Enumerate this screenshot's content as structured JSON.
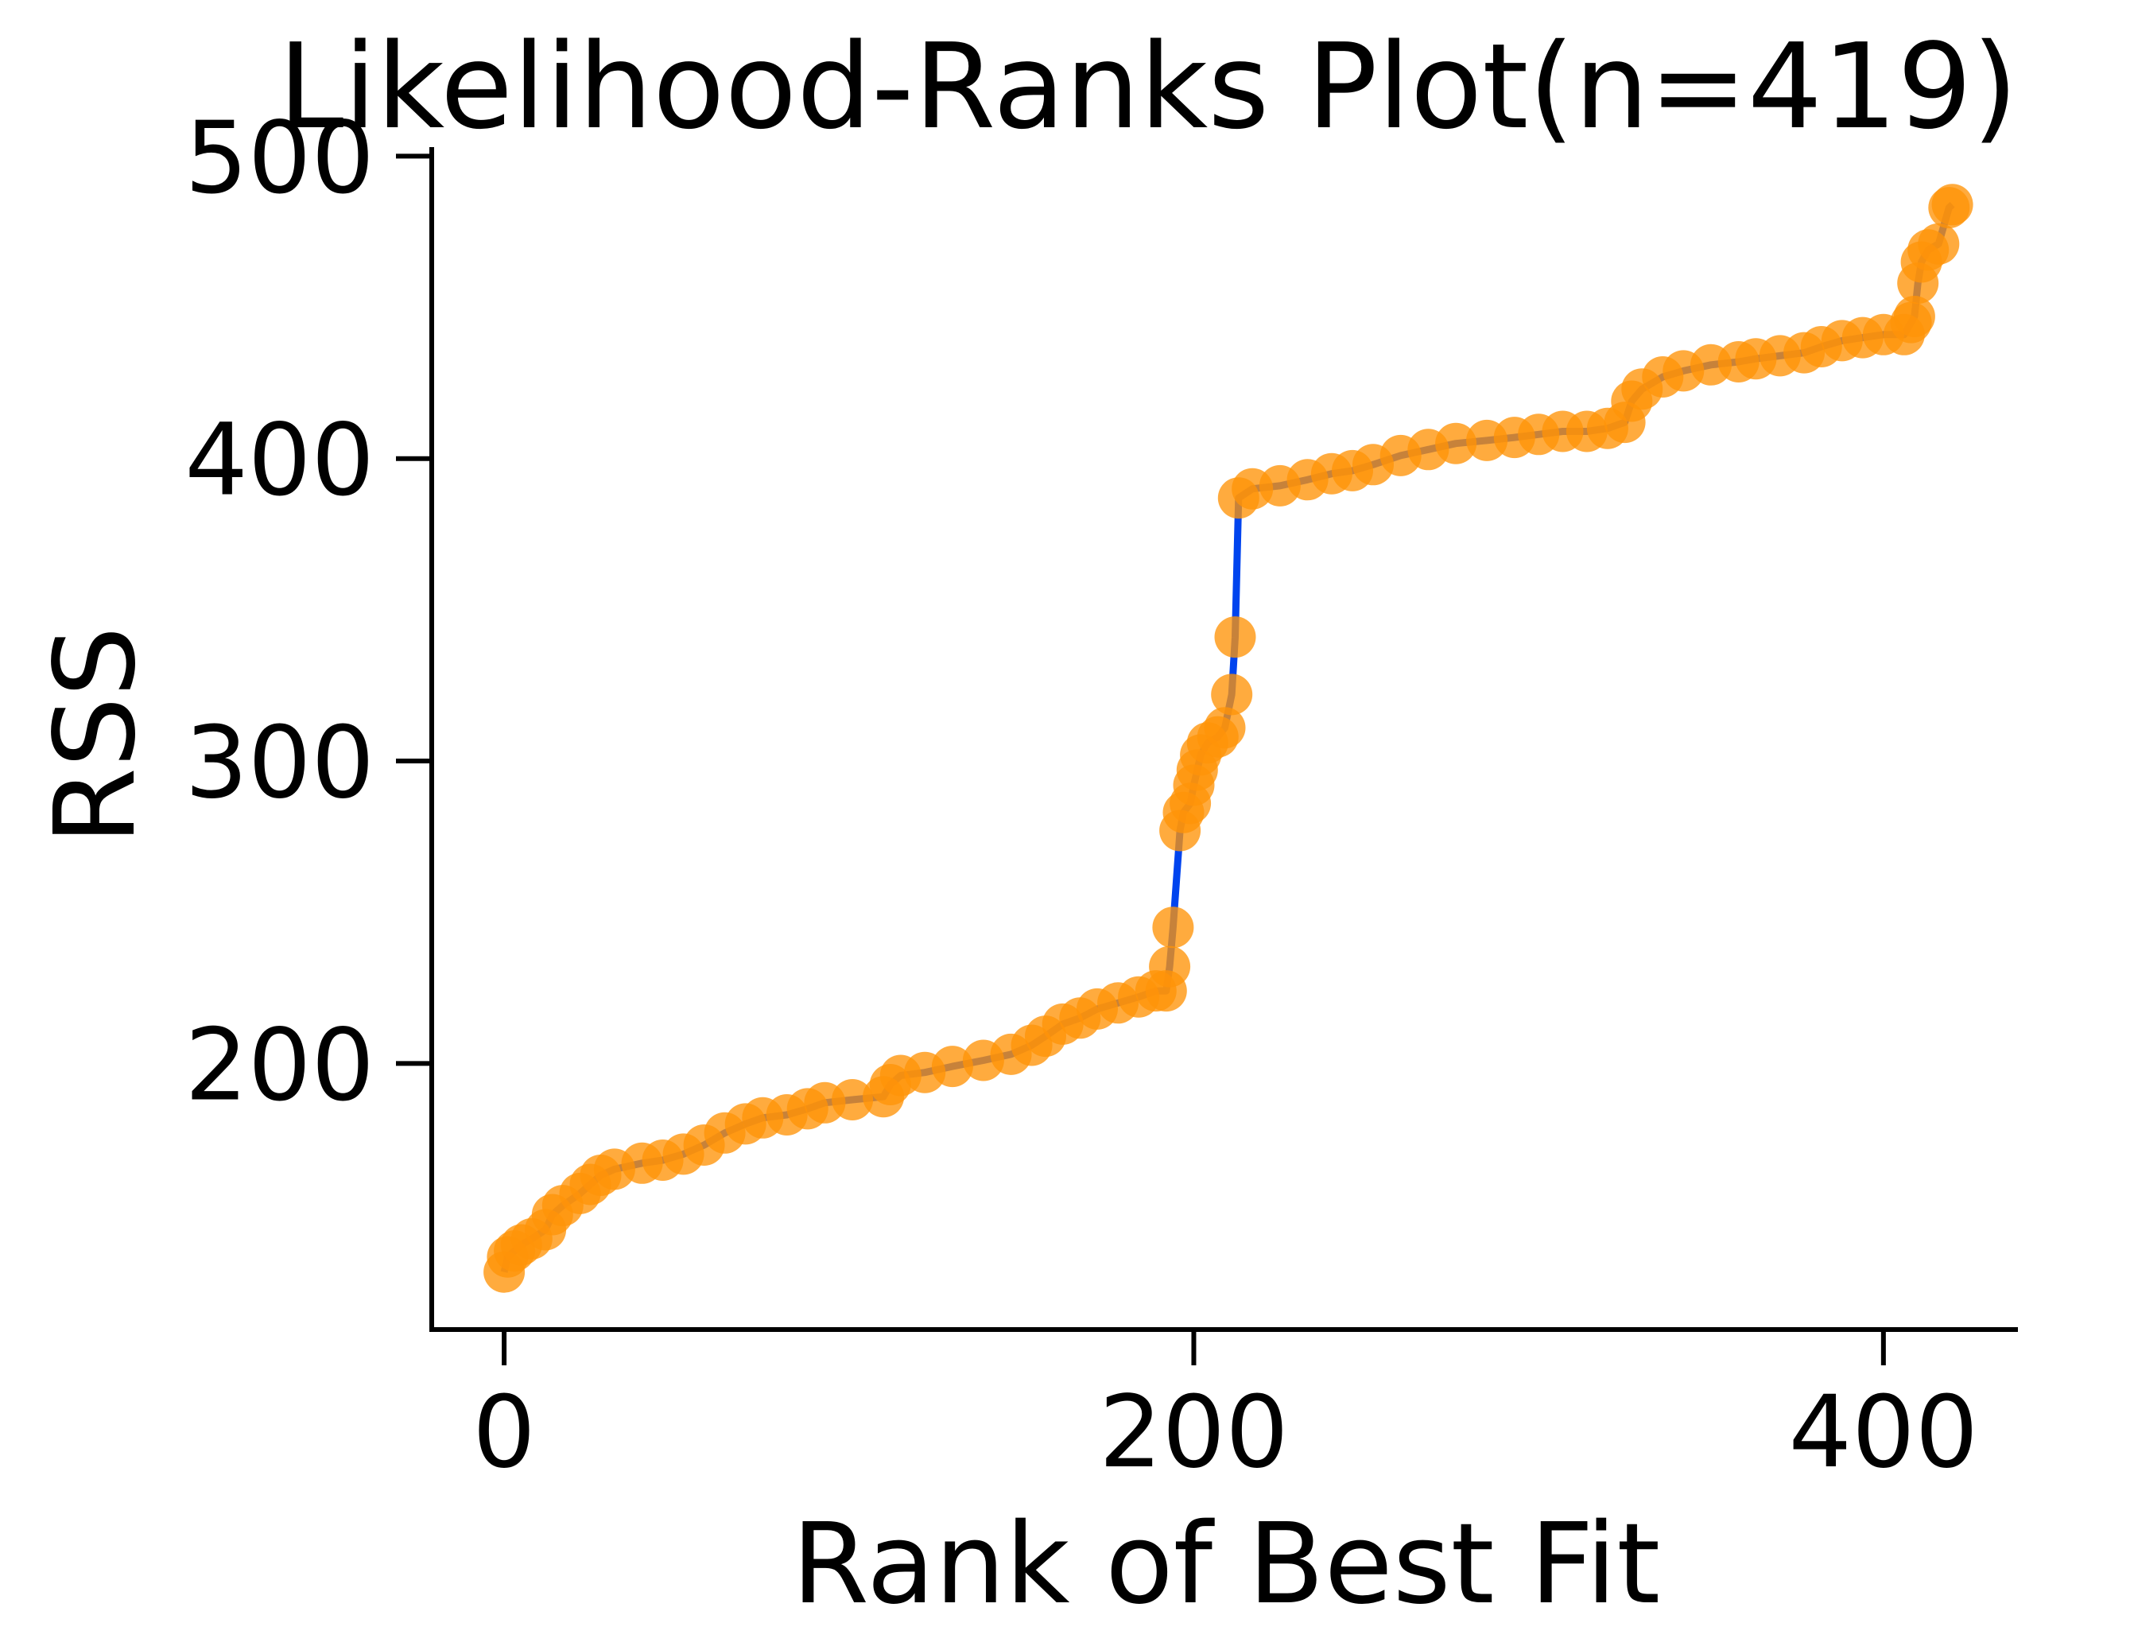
{
  "chart_data": {
    "type": "line",
    "title": "Likelihood-Ranks Plot(n=419)",
    "xlabel": "Rank of Best Fit",
    "ylabel": "RSS",
    "xlim": [
      -21,
      439
    ],
    "ylim": [
      112,
      503
    ],
    "x_ticks": [
      0,
      200,
      400
    ],
    "y_ticks": [
      200,
      300,
      400,
      500
    ],
    "grid": false,
    "legend": "none",
    "series": [
      {
        "line_color": "#0044ee",
        "marker_color": "#ff9408",
        "points": [
          [
            0,
            131
          ],
          [
            1,
            136
          ],
          [
            3,
            138
          ],
          [
            5,
            140
          ],
          [
            8,
            142
          ],
          [
            12,
            145
          ],
          [
            14,
            150
          ],
          [
            17,
            153
          ],
          [
            22,
            157
          ],
          [
            25,
            160
          ],
          [
            28,
            163
          ],
          [
            32,
            165
          ],
          [
            40,
            167
          ],
          [
            46,
            168
          ],
          [
            52,
            170
          ],
          [
            58,
            173
          ],
          [
            64,
            177
          ],
          [
            70,
            180
          ],
          [
            75,
            182
          ],
          [
            82,
            183
          ],
          [
            88,
            185
          ],
          [
            93,
            187
          ],
          [
            101,
            188
          ],
          [
            110,
            189
          ],
          [
            112,
            193
          ],
          [
            115,
            196
          ],
          [
            122,
            197
          ],
          [
            130,
            199
          ],
          [
            139,
            201
          ],
          [
            147,
            203
          ],
          [
            153,
            206
          ],
          [
            157,
            209
          ],
          [
            162,
            213
          ],
          [
            167,
            215
          ],
          [
            172,
            218
          ],
          [
            178,
            220
          ],
          [
            184,
            222
          ],
          [
            189,
            224
          ],
          [
            192,
            224
          ],
          [
            193,
            232
          ],
          [
            194,
            245
          ],
          [
            196,
            277
          ],
          [
            197,
            283
          ],
          [
            199,
            286
          ],
          [
            200,
            292
          ],
          [
            201,
            297
          ],
          [
            202,
            302
          ],
          [
            204,
            306
          ],
          [
            207,
            308
          ],
          [
            209,
            311
          ],
          [
            211,
            322
          ],
          [
            212,
            341
          ],
          [
            213,
            387
          ],
          [
            217,
            390
          ],
          [
            225,
            391
          ],
          [
            233,
            393
          ],
          [
            240,
            395
          ],
          [
            246,
            396
          ],
          [
            252,
            398
          ],
          [
            260,
            401
          ],
          [
            268,
            403
          ],
          [
            276,
            405
          ],
          [
            285,
            406
          ],
          [
            293,
            407
          ],
          [
            300,
            408
          ],
          [
            307,
            409
          ],
          [
            314,
            409
          ],
          [
            320,
            410
          ],
          [
            325,
            412
          ],
          [
            327,
            419
          ],
          [
            330,
            423
          ],
          [
            336,
            427
          ],
          [
            342,
            429
          ],
          [
            350,
            431
          ],
          [
            358,
            432
          ],
          [
            363,
            433
          ],
          [
            370,
            434
          ],
          [
            377,
            435
          ],
          [
            382,
            437
          ],
          [
            388,
            439
          ],
          [
            394,
            440
          ],
          [
            400,
            441
          ],
          [
            406,
            441
          ],
          [
            408,
            445
          ],
          [
            409,
            447
          ],
          [
            410,
            458
          ],
          [
            411,
            465
          ],
          [
            413,
            469
          ],
          [
            416,
            471
          ],
          [
            419,
            483
          ],
          [
            420,
            484
          ]
        ]
      }
    ]
  }
}
